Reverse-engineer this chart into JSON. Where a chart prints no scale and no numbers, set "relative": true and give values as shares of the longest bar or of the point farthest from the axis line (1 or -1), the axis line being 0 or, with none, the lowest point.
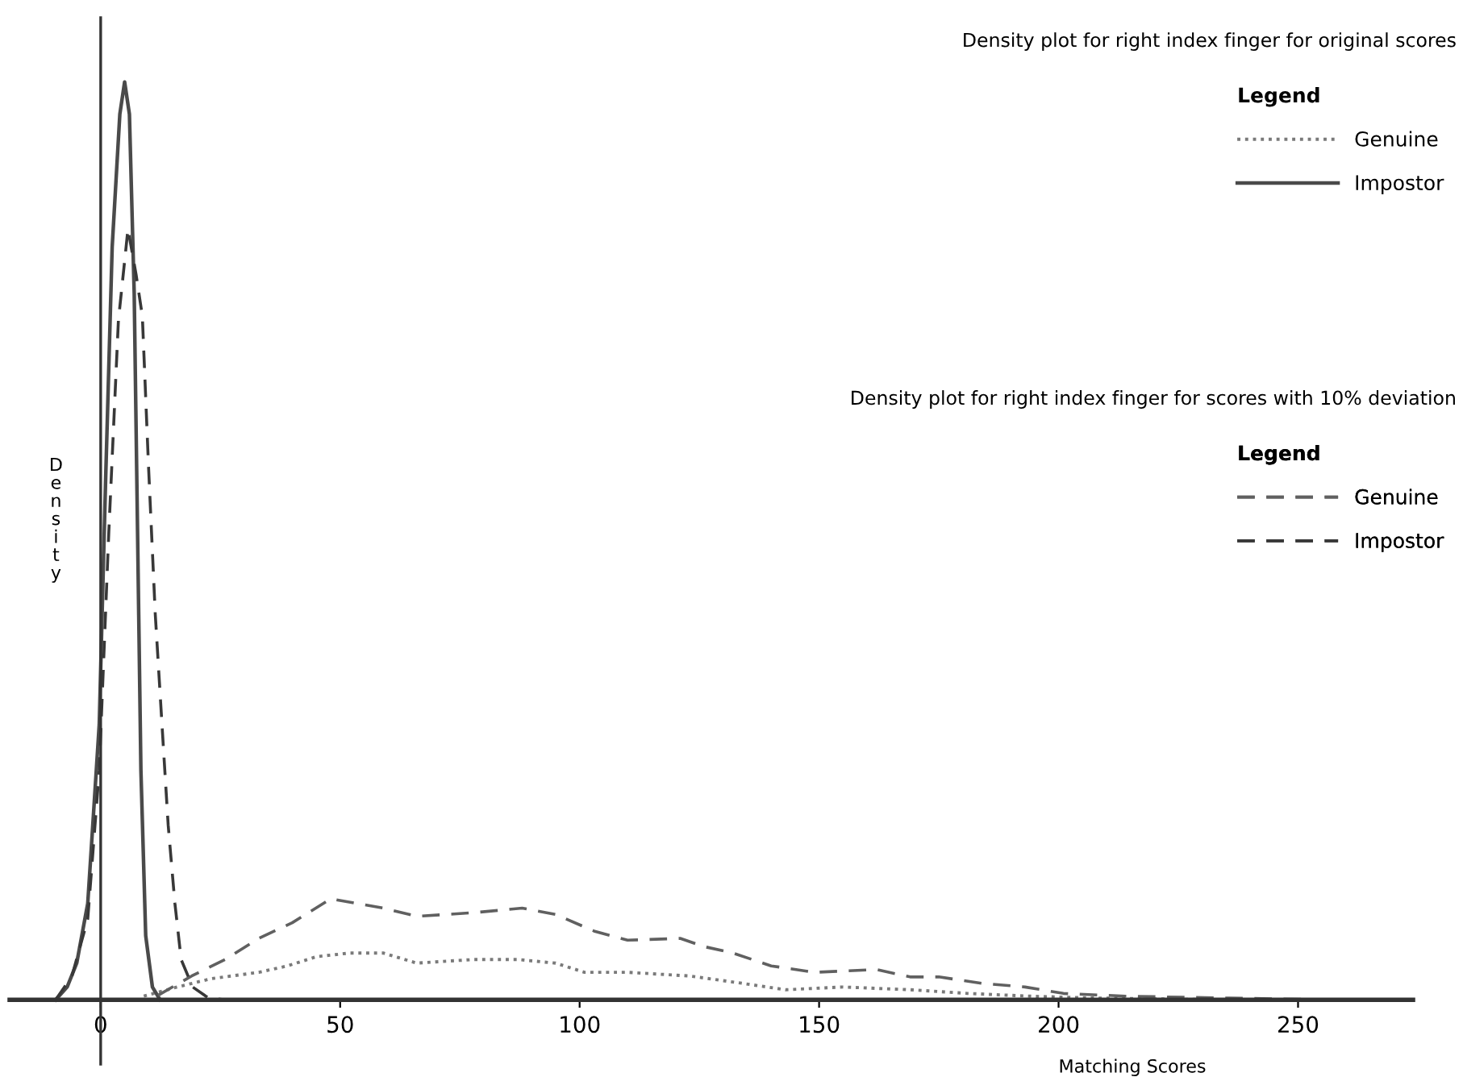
{
  "chart_data": {
    "type": "line",
    "xlabel": "Matching Scores",
    "ylabel": "Density",
    "legend_title": "Legend",
    "legend": "top right",
    "relative": true,
    "xlim": [
      -19,
      274
    ],
    "xticks": [
      0,
      50,
      100,
      150,
      200,
      250
    ],
    "annotations": [
      "Density plot for right index finger for original scores",
      "Density plot for right index finger for scores with 10% deviation"
    ],
    "series": [
      {
        "name": "Genuine",
        "color": "#7a7a7a",
        "line_style": "dotted",
        "x": [
          9,
          16,
          23,
          33,
          39,
          45,
          52,
          59,
          66,
          78,
          87,
          95,
          101,
          110,
          123,
          134,
          143,
          155,
          169,
          181,
          194,
          207,
          235
        ],
        "values": [
          0.004,
          0.014,
          0.023,
          0.03,
          0.037,
          0.047,
          0.051,
          0.051,
          0.04,
          0.044,
          0.044,
          0.04,
          0.03,
          0.03,
          0.026,
          0.018,
          0.011,
          0.014,
          0.011,
          0.007,
          0.004,
          0.002,
          0
        ]
      },
      {
        "name": "Impostor",
        "color": "#4a4a4a",
        "line_style": "solid",
        "x": [
          -9.4,
          -7,
          -5,
          -2.7,
          -0.3,
          1,
          2.4,
          4,
          5,
          6,
          7,
          7.7,
          8.4,
          9.4,
          10.8,
          12.4
        ],
        "values": [
          0,
          0.014,
          0.04,
          0.105,
          0.3,
          0.56,
          0.82,
          0.965,
          1,
          0.965,
          0.77,
          0.51,
          0.25,
          0.07,
          0.014,
          0
        ]
      },
      {
        "name": "Genuine",
        "color": "#606060",
        "line_style": "dashed",
        "x": [
          12,
          19,
          26,
          33,
          40,
          48,
          59,
          66,
          78,
          88,
          95,
          103,
          110,
          121,
          126,
          132,
          140,
          149,
          162,
          169,
          175,
          184,
          193,
          201,
          214,
          235,
          258
        ],
        "values": [
          0.005,
          0.026,
          0.044,
          0.067,
          0.084,
          0.11,
          0.1,
          0.091,
          0.095,
          0.1,
          0.093,
          0.075,
          0.065,
          0.067,
          0.058,
          0.051,
          0.037,
          0.03,
          0.033,
          0.025,
          0.025,
          0.018,
          0.014,
          0.007,
          0.004,
          0.002,
          0
        ]
      },
      {
        "name": "Impostor",
        "color": "#383838",
        "line_style": "dashed",
        "x": [
          -9.4,
          -6,
          -2.7,
          -0.3,
          1.7,
          3.7,
          5.7,
          7.4,
          8.7,
          10,
          11.4,
          12.8,
          14.1,
          15.5,
          16.8,
          19.2,
          22.5,
          26
        ],
        "values": [
          0,
          0.026,
          0.088,
          0.25,
          0.51,
          0.74,
          0.84,
          0.79,
          0.745,
          0.58,
          0.42,
          0.3,
          0.19,
          0.105,
          0.044,
          0.014,
          0.002,
          0
        ]
      }
    ]
  }
}
